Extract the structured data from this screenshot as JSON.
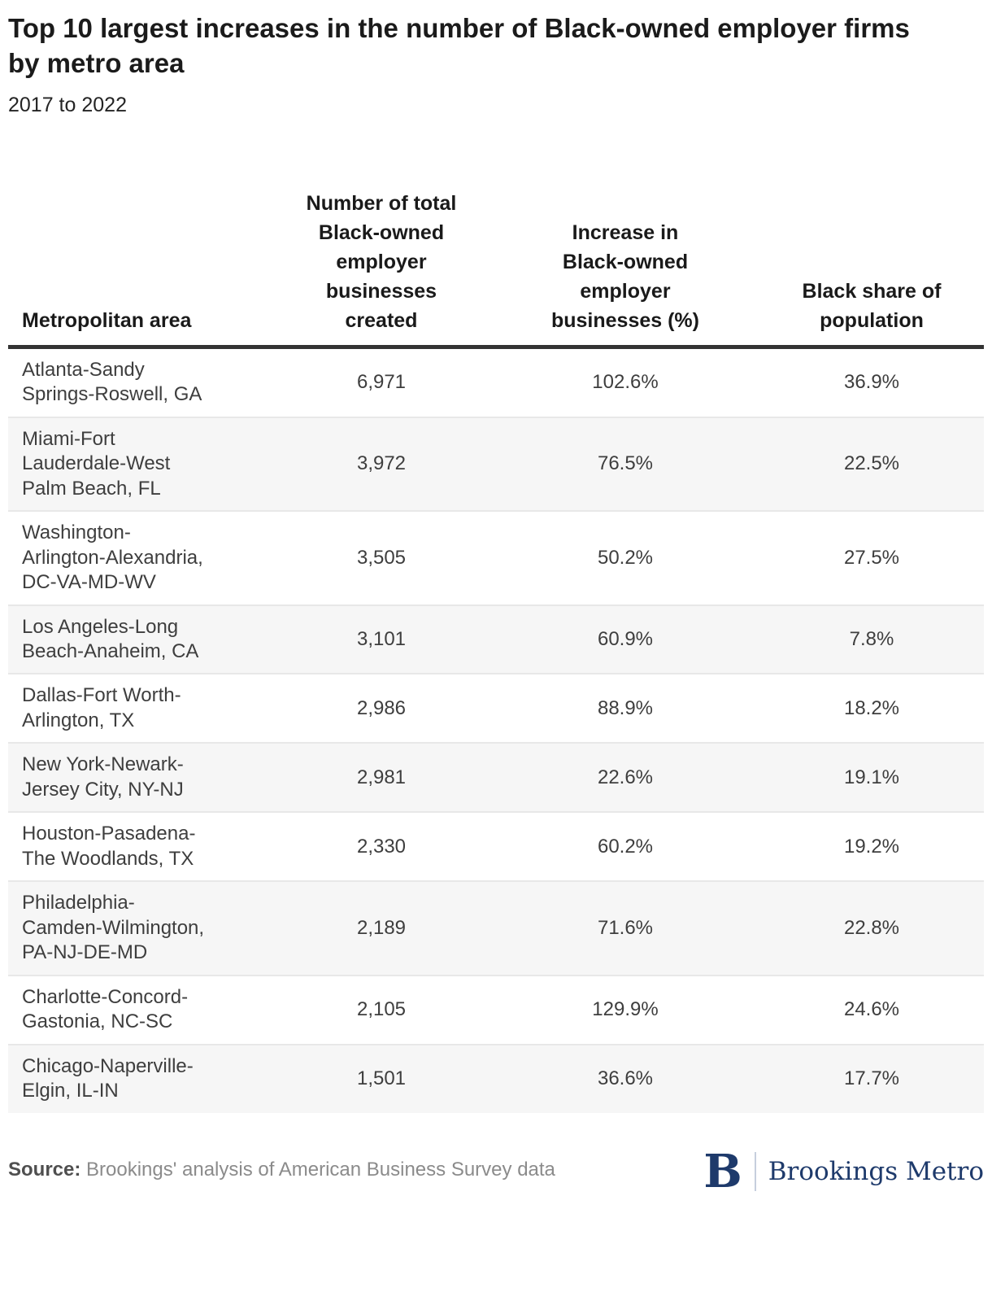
{
  "chart_data": {
    "type": "table",
    "title": "Top 10 largest increases in the number of Black-owned employer firms by metro area",
    "subtitle": "2017 to 2022",
    "columns": [
      "Metropolitan area",
      "Number of total Black-owned employer businesses created",
      "Increase in Black-owned employer businesses (%)",
      "Black share of population"
    ],
    "rows": [
      {
        "metro": "Atlanta-Sandy Springs-Roswell, GA",
        "created": "6,971",
        "increase": "102.6%",
        "share": "36.9%"
      },
      {
        "metro": "Miami-Fort Lauderdale-West Palm Beach, FL",
        "created": "3,972",
        "increase": "76.5%",
        "share": "22.5%"
      },
      {
        "metro": "Washington-Arlington-Alexandria, DC-VA-MD-WV",
        "created": "3,505",
        "increase": "50.2%",
        "share": "27.5%"
      },
      {
        "metro": "Los Angeles-Long Beach-Anaheim, CA",
        "created": "3,101",
        "increase": "60.9%",
        "share": "7.8%"
      },
      {
        "metro": "Dallas-Fort Worth-Arlington, TX",
        "created": "2,986",
        "increase": "88.9%",
        "share": "18.2%"
      },
      {
        "metro": "New York-Newark-Jersey City, NY-NJ",
        "created": "2,981",
        "increase": "22.6%",
        "share": "19.1%"
      },
      {
        "metro": "Houston-Pasadena-The Woodlands, TX",
        "created": "2,330",
        "increase": "60.2%",
        "share": "19.2%"
      },
      {
        "metro": "Philadelphia-Camden-Wilmington, PA-NJ-DE-MD",
        "created": "2,189",
        "increase": "71.6%",
        "share": "22.8%"
      },
      {
        "metro": "Charlotte-Concord-Gastonia, NC-SC",
        "created": "2,105",
        "increase": "129.9%",
        "share": "24.6%"
      },
      {
        "metro": "Chicago-Naperville-Elgin, IL-IN",
        "created": "1,501",
        "increase": "36.6%",
        "share": "17.7%"
      }
    ],
    "source_label": "Source:",
    "source_text": "Brookings' analysis of American Business Survey data",
    "logo": {
      "mark": "B",
      "wordmark": "Brookings Metro"
    },
    "layout": {
      "row_striping": "alternate",
      "header_rule": "thick-dark",
      "value_alignment": "center"
    },
    "colors": {
      "title_text": "#1b1b1b",
      "body_text": "#3e3e3e",
      "header_rule": "#333333",
      "row_alt_background": "#f6f6f6",
      "row_divider": "#e8e8e8",
      "source_text": "#8b8b8b",
      "brand_navy": "#1e3a6b",
      "logo_divider": "#c6cfdd"
    }
  }
}
